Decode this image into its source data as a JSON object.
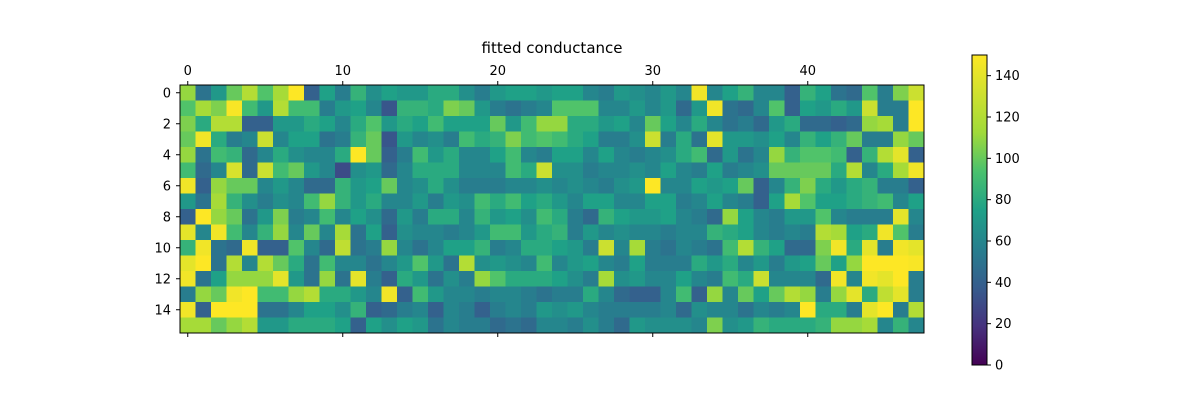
{
  "chart_data": {
    "type": "heatmap",
    "title": "fitted conductance",
    "colormap": "viridis",
    "n_rows": 16,
    "n_cols": 48,
    "x_ticks": [
      0,
      10,
      20,
      30,
      40
    ],
    "x_tick_labels": [
      "0",
      "10",
      "20",
      "30",
      "40"
    ],
    "y_ticks": [
      0,
      2,
      4,
      6,
      8,
      10,
      12,
      14
    ],
    "y_tick_labels": [
      "0",
      "2",
      "4",
      "6",
      "8",
      "10",
      "12",
      "14"
    ],
    "colorbar": {
      "vmin": 0,
      "vmax": 150,
      "ticks": [
        0,
        20,
        40,
        60,
        80,
        100,
        120,
        140
      ],
      "tick_labels": [
        "0",
        "20",
        "40",
        "60",
        "80",
        "100",
        "120",
        "140"
      ]
    },
    "values": [
      [
        110,
        50,
        70,
        100,
        120,
        95,
        115,
        150,
        40,
        75,
        55,
        85,
        65,
        75,
        70,
        70,
        80,
        80,
        65,
        55,
        70,
        75,
        75,
        70,
        75,
        75,
        60,
        55,
        70,
        65,
        60,
        70,
        60,
        145,
        60,
        75,
        85,
        60,
        60,
        40,
        85,
        75,
        50,
        45,
        95,
        55,
        105,
        130
      ],
      [
        95,
        115,
        105,
        148,
        90,
        70,
        120,
        90,
        90,
        55,
        70,
        75,
        60,
        35,
        85,
        85,
        80,
        105,
        100,
        70,
        55,
        50,
        55,
        60,
        95,
        95,
        95,
        60,
        60,
        70,
        60,
        70,
        45,
        70,
        145,
        50,
        45,
        60,
        95,
        40,
        75,
        70,
        80,
        70,
        130,
        55,
        55,
        150
      ],
      [
        105,
        80,
        120,
        120,
        40,
        40,
        70,
        70,
        80,
        75,
        60,
        80,
        95,
        70,
        80,
        75,
        90,
        75,
        75,
        75,
        100,
        70,
        90,
        110,
        110,
        80,
        80,
        70,
        75,
        60,
        100,
        75,
        60,
        80,
        60,
        50,
        55,
        45,
        70,
        80,
        45,
        45,
        40,
        45,
        110,
        115,
        55,
        150
      ],
      [
        100,
        145,
        80,
        55,
        60,
        130,
        60,
        75,
        75,
        50,
        55,
        85,
        100,
        35,
        70,
        60,
        65,
        55,
        90,
        80,
        85,
        105,
        90,
        95,
        90,
        80,
        75,
        55,
        55,
        65,
        130,
        55,
        80,
        50,
        140,
        70,
        70,
        65,
        75,
        60,
        85,
        75,
        85,
        100,
        55,
        55,
        110,
        100
      ],
      [
        110,
        50,
        90,
        85,
        45,
        60,
        80,
        65,
        60,
        60,
        80,
        150,
        100,
        40,
        55,
        90,
        70,
        80,
        60,
        60,
        75,
        90,
        60,
        55,
        75,
        75,
        60,
        75,
        60,
        55,
        60,
        65,
        80,
        90,
        45,
        70,
        50,
        60,
        110,
        85,
        95,
        95,
        90,
        40,
        85,
        120,
        140,
        40
      ],
      [
        90,
        45,
        60,
        135,
        45,
        130,
        90,
        100,
        70,
        60,
        30,
        65,
        70,
        45,
        60,
        80,
        80,
        80,
        60,
        60,
        60,
        90,
        80,
        130,
        65,
        65,
        55,
        60,
        60,
        65,
        60,
        75,
        60,
        55,
        75,
        55,
        60,
        65,
        100,
        100,
        100,
        100,
        80,
        120,
        60,
        80,
        115,
        145
      ],
      [
        145,
        40,
        110,
        100,
        100,
        60,
        70,
        60,
        45,
        45,
        85,
        70,
        75,
        100,
        60,
        65,
        80,
        65,
        55,
        55,
        55,
        60,
        60,
        65,
        60,
        65,
        60,
        55,
        65,
        70,
        150,
        60,
        60,
        75,
        70,
        75,
        100,
        40,
        60,
        85,
        105,
        80,
        70,
        80,
        85,
        55,
        55,
        40
      ],
      [
        70,
        50,
        115,
        85,
        65,
        55,
        65,
        60,
        90,
        110,
        85,
        70,
        80,
        60,
        60,
        70,
        55,
        70,
        65,
        90,
        80,
        90,
        75,
        80,
        70,
        60,
        75,
        75,
        60,
        60,
        75,
        75,
        55,
        60,
        75,
        60,
        55,
        40,
        75,
        115,
        95,
        75,
        75,
        80,
        85,
        90,
        60,
        75
      ],
      [
        40,
        150,
        110,
        100,
        50,
        70,
        105,
        55,
        60,
        90,
        60,
        75,
        65,
        45,
        70,
        55,
        80,
        80,
        60,
        85,
        70,
        75,
        65,
        90,
        80,
        55,
        45,
        85,
        75,
        70,
        70,
        75,
        60,
        55,
        45,
        110,
        75,
        60,
        55,
        70,
        70,
        95,
        60,
        55,
        55,
        55,
        140,
        60
      ],
      [
        140,
        60,
        145,
        90,
        60,
        85,
        110,
        60,
        100,
        60,
        115,
        50,
        75,
        40,
        65,
        60,
        60,
        55,
        60,
        70,
        90,
        90,
        70,
        80,
        85,
        55,
        70,
        60,
        65,
        60,
        60,
        55,
        60,
        60,
        85,
        80,
        75,
        60,
        55,
        60,
        55,
        120,
        115,
        75,
        80,
        145,
        95,
        55
      ],
      [
        85,
        145,
        50,
        45,
        145,
        40,
        40,
        95,
        60,
        45,
        125,
        50,
        55,
        110,
        60,
        50,
        60,
        75,
        75,
        85,
        55,
        60,
        80,
        80,
        75,
        70,
        55,
        130,
        60,
        115,
        55,
        50,
        60,
        55,
        50,
        90,
        120,
        85,
        75,
        45,
        45,
        105,
        145,
        80,
        140,
        55,
        145,
        140
      ],
      [
        140,
        150,
        50,
        120,
        60,
        120,
        100,
        80,
        50,
        90,
        60,
        60,
        50,
        60,
        70,
        95,
        70,
        50,
        120,
        65,
        70,
        65,
        60,
        90,
        60,
        70,
        75,
        60,
        55,
        75,
        55,
        55,
        55,
        80,
        70,
        80,
        60,
        70,
        55,
        70,
        75,
        100,
        75,
        110,
        150,
        150,
        150,
        148
      ],
      [
        145,
        50,
        75,
        110,
        110,
        110,
        140,
        70,
        50,
        110,
        50,
        140,
        55,
        40,
        80,
        70,
        50,
        65,
        55,
        110,
        95,
        80,
        80,
        80,
        75,
        65,
        55,
        115,
        65,
        70,
        60,
        60,
        75,
        60,
        55,
        90,
        80,
        130,
        60,
        60,
        60,
        45,
        145,
        60,
        145,
        140,
        150,
        55
      ],
      [
        55,
        110,
        100,
        145,
        150,
        90,
        90,
        110,
        120,
        80,
        80,
        70,
        60,
        145,
        40,
        90,
        70,
        60,
        60,
        55,
        60,
        60,
        55,
        50,
        55,
        55,
        80,
        60,
        45,
        40,
        40,
        60,
        90,
        40,
        110,
        60,
        100,
        75,
        100,
        120,
        110,
        55,
        110,
        140,
        80,
        125,
        140,
        55
      ],
      [
        145,
        40,
        150,
        150,
        150,
        50,
        50,
        60,
        75,
        75,
        65,
        85,
        40,
        45,
        55,
        60,
        40,
        60,
        55,
        40,
        55,
        60,
        55,
        70,
        65,
        70,
        60,
        55,
        55,
        55,
        55,
        60,
        45,
        65,
        60,
        60,
        50,
        60,
        55,
        60,
        150,
        80,
        80,
        55,
        140,
        150,
        55,
        120
      ],
      [
        115,
        115,
        100,
        110,
        120,
        70,
        70,
        80,
        80,
        80,
        75,
        40,
        75,
        65,
        75,
        70,
        50,
        60,
        55,
        55,
        45,
        50,
        45,
        60,
        60,
        55,
        65,
        55,
        45,
        70,
        65,
        65,
        65,
        60,
        105,
        65,
        70,
        85,
        80,
        80,
        80,
        85,
        110,
        110,
        115,
        60,
        85,
        60
      ]
    ]
  }
}
